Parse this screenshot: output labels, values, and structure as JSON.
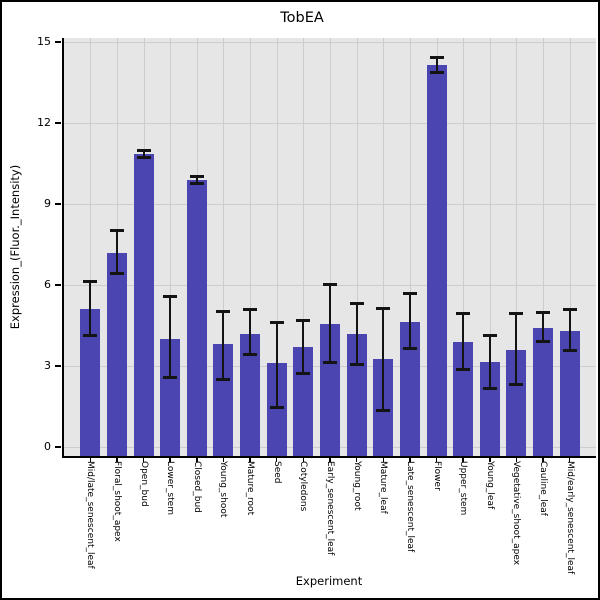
{
  "chart_data": {
    "type": "bar",
    "title": "TobEA",
    "xlabel": "Experiment",
    "ylabel": "Expression_(Fluor._Intensity)",
    "categories": [
      "Mid/late_senescent_leaf",
      "Floral_shoot_apex",
      "Open_bud",
      "Lower_stem",
      "Closed_bud",
      "Young_shoot",
      "Mature_root",
      "Seed",
      "Cotyledons",
      "Early_senescent_leaf",
      "Young_root",
      "Mature_leaf",
      "Late_senescent_leaf",
      "Flower",
      "Upper_stem",
      "Young_leaf",
      "Vegetative_shoot_apex",
      "Cauline_leaf",
      "Mid/early_senescent_leaf"
    ],
    "values": [
      5.1,
      7.2,
      10.85,
      4.0,
      9.9,
      3.8,
      4.2,
      3.1,
      3.7,
      4.55,
      4.2,
      3.25,
      4.65,
      14.15,
      3.9,
      3.15,
      3.6,
      4.4,
      4.3
    ],
    "error_low": [
      4.1,
      6.4,
      10.7,
      2.55,
      9.75,
      2.5,
      3.4,
      1.45,
      2.7,
      3.1,
      3.05,
      1.35,
      3.65,
      13.85,
      2.85,
      2.15,
      2.3,
      3.9,
      3.55
    ],
    "error_high": [
      6.15,
      8.05,
      11.0,
      5.6,
      10.05,
      5.05,
      5.1,
      4.65,
      4.7,
      6.05,
      5.35,
      5.15,
      5.7,
      14.45,
      4.95,
      4.15,
      4.95,
      5.0,
      5.1
    ],
    "yticks": [
      0,
      3,
      6,
      9,
      12,
      15
    ],
    "ylim": [
      -0.33,
      15.15
    ],
    "grid": true,
    "legend_position": "none",
    "colors": {
      "bar": "#4b45b2",
      "plot_background": "#e6e6e6",
      "gridline": "#cdcdcd",
      "axis": "#000000",
      "error_bar": "#141414"
    }
  }
}
